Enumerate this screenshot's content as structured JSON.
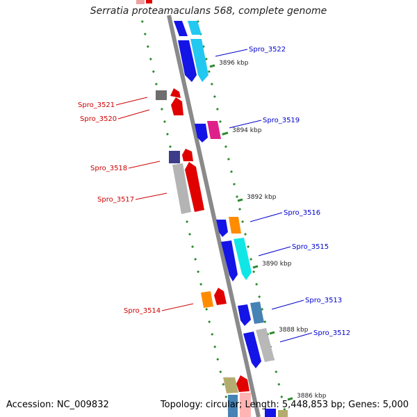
{
  "title": "Serratia proteamaculans 568, complete genome",
  "footer": {
    "accession": "Accession: NC_009832",
    "summary": "Topology: circular; Length: 5,448,853 bp; Genes: 5,000"
  },
  "colors": {
    "backbone": "#8a8a8a",
    "tick": "#2e8b2e",
    "plus_label": "#0000cc",
    "minus_label": "#cc0000"
  },
  "ruler": [
    {
      "label": "3896 kbp"
    },
    {
      "label": "3894 kbp"
    },
    {
      "label": "3892 kbp"
    },
    {
      "label": "3890 kbp"
    },
    {
      "label": "3888 kbp"
    },
    {
      "label": "3886 kbp"
    }
  ],
  "genes": [
    {
      "id": "Spro_3522",
      "strand": "+"
    },
    {
      "id": "Spro_3521",
      "strand": "-"
    },
    {
      "id": "Spro_3520",
      "strand": "-"
    },
    {
      "id": "Spro_3519",
      "strand": "+"
    },
    {
      "id": "Spro_3518",
      "strand": "-"
    },
    {
      "id": "Spro_3517",
      "strand": "-"
    },
    {
      "id": "Spro_3516",
      "strand": "+"
    },
    {
      "id": "Spro_3515",
      "strand": "+"
    },
    {
      "id": "Spro_3514",
      "strand": "-"
    },
    {
      "id": "Spro_3513",
      "strand": "+"
    },
    {
      "id": "Spro_3512",
      "strand": "+"
    }
  ]
}
